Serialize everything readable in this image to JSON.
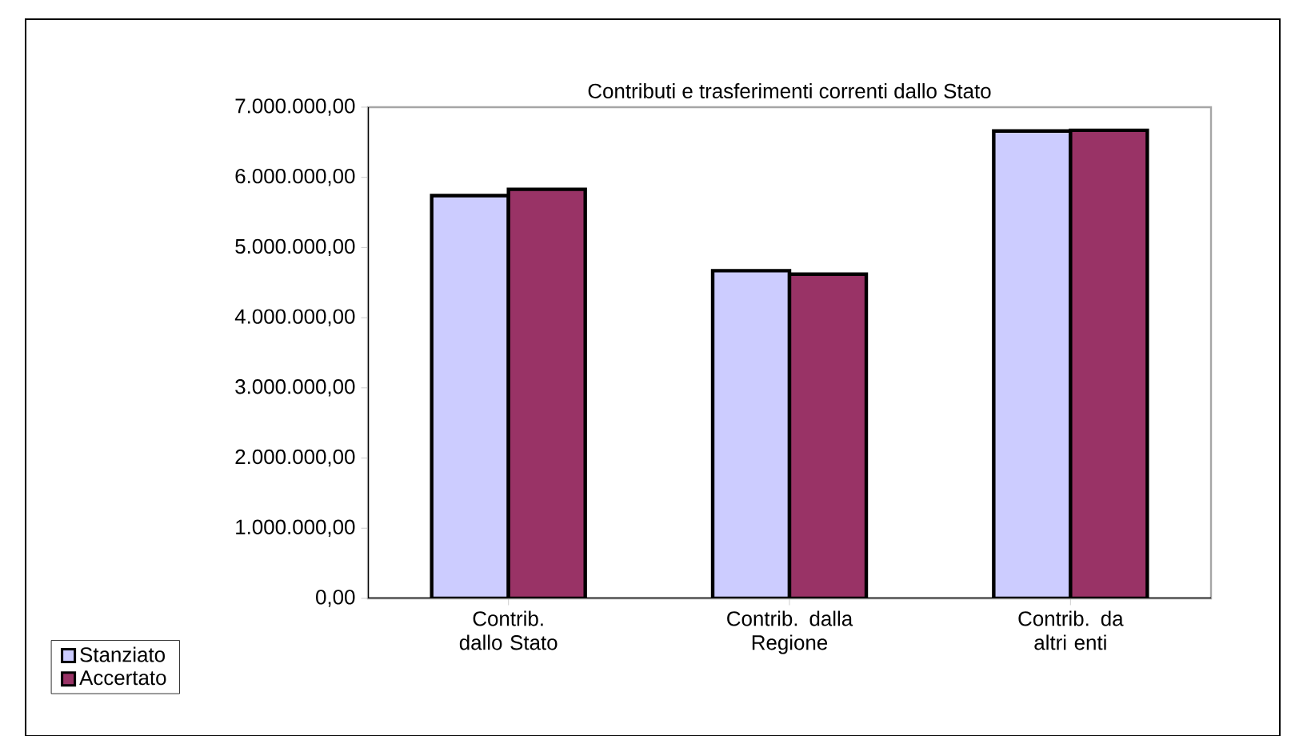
{
  "chart_data": {
    "type": "bar",
    "title": "Contributi e trasferimenti correnti dallo Stato",
    "categories": [
      "Contrib. dallo Stato",
      "Contrib. dalla Regione",
      "Contrib. da altri enti"
    ],
    "series": [
      {
        "name": "Stanziato",
        "color": "#ccccff",
        "values": [
          5740000,
          4670000,
          6660000
        ]
      },
      {
        "name": "Accertato",
        "color": "#993366",
        "values": [
          5830000,
          4620000,
          6670000
        ]
      }
    ],
    "ylim": [
      0,
      7000000
    ],
    "yticks": [
      {
        "value": 0,
        "label": "0,00"
      },
      {
        "value": 1000000,
        "label": "1.000.000,00"
      },
      {
        "value": 2000000,
        "label": "2.000.000,00"
      },
      {
        "value": 3000000,
        "label": "3.000.000,00"
      },
      {
        "value": 4000000,
        "label": "4.000.000,00"
      },
      {
        "value": 5000000,
        "label": "5.000.000,00"
      },
      {
        "value": 6000000,
        "label": "6.000.000,00"
      },
      {
        "value": 7000000,
        "label": "7.000.000,00"
      }
    ],
    "grid": false,
    "legend": "bottom left"
  }
}
